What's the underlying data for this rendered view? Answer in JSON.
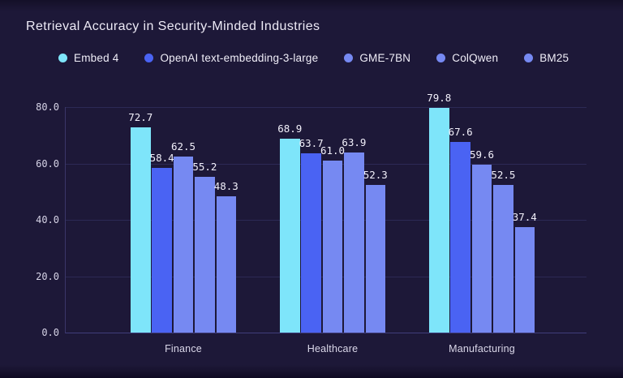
{
  "page": {
    "background_color": "#1D1838",
    "title": "Retrieval Accuracy in Security-Minded Industries",
    "title_color": "#EDEAF6"
  },
  "chart_data": {
    "type": "bar",
    "title": "Retrieval Accuracy in Security-Minded Industries",
    "categories": [
      "Finance",
      "Healthcare",
      "Manufacturing"
    ],
    "series": [
      {
        "name": "Embed 4",
        "color": "#7EE5FA",
        "values": [
          72.7,
          68.9,
          79.8
        ]
      },
      {
        "name": "OpenAI text-embedding-3-large",
        "color": "#4A63F3",
        "values": [
          58.4,
          63.7,
          67.6
        ]
      },
      {
        "name": "GME-7BN",
        "color": "#7689F2",
        "values": [
          62.5,
          61.0,
          59.6
        ]
      },
      {
        "name": "ColQwen",
        "color": "#7689F2",
        "values": [
          55.2,
          63.9,
          52.5
        ]
      },
      {
        "name": "BM25",
        "color": "#7689F2",
        "values": [
          48.3,
          52.3,
          37.4
        ]
      }
    ],
    "xlabel": "",
    "ylabel": "",
    "ylim": [
      0,
      80
    ],
    "yticks": [
      "0.0",
      "20.0",
      "40.0",
      "60.0",
      "80.0"
    ],
    "grid": true,
    "gridline_color": "#2C2955",
    "axis_line_color": "#403D7C",
    "tick_label_color": "#D6D3E6",
    "value_label_color": "#F2F0FA",
    "value_label_format": "one-decimal",
    "legend_position": "top"
  }
}
